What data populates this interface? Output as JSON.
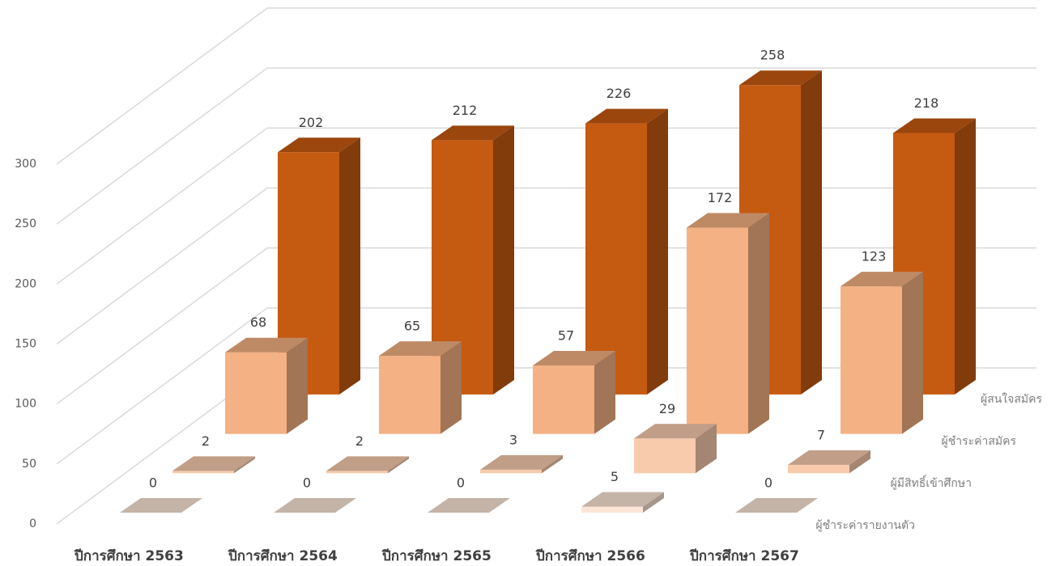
{
  "chart_data": {
    "type": "bar3d",
    "categories": [
      "ปีการศึกษา 2563",
      "ปีการศึกษา 2564",
      "ปีการศึกษา 2565",
      "ปีการศึกษา 2566",
      "ปีการศึกษา 2567"
    ],
    "series": [
      {
        "name": "ผู้สนใจสมัคร",
        "color": "#c55a11",
        "values": [
          202,
          212,
          226,
          258,
          218
        ]
      },
      {
        "name": "ผู้ชำระค่าสมัคร",
        "color": "#f4b183",
        "values": [
          68,
          65,
          57,
          172,
          123
        ]
      },
      {
        "name": "ผู้มีสิทธิ์เข้าศึกษา",
        "color": "#f8cbad",
        "values": [
          2,
          2,
          3,
          29,
          7
        ]
      },
      {
        "name": "ผู้ชำระค่ารายงานตัว",
        "color": "#fbe5d6",
        "values": [
          0,
          0,
          0,
          5,
          0
        ]
      }
    ],
    "ylim": [
      0,
      300
    ],
    "yticks": [
      0,
      50,
      100,
      150,
      200,
      250,
      300
    ],
    "grid": true
  }
}
